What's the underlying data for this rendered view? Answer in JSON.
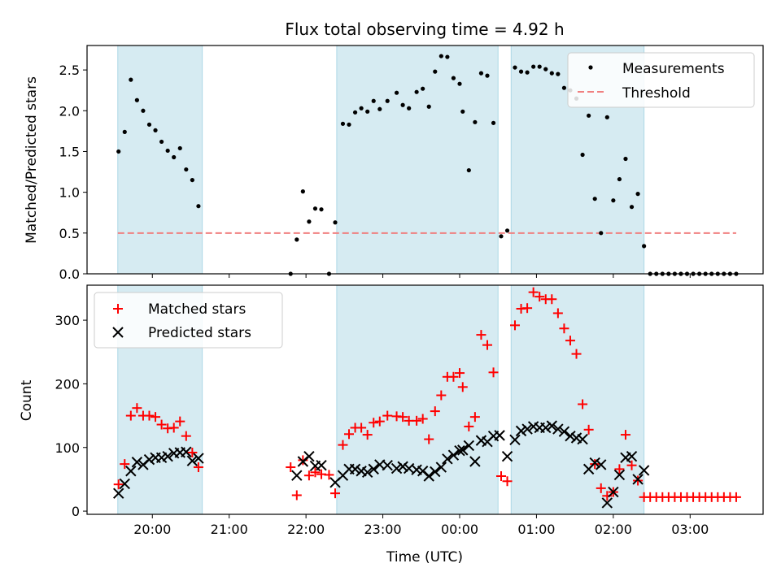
{
  "figure": {
    "title": "Flux total observing time = 4.92 h",
    "xlabel": "Time (UTC)",
    "x_ticks": [
      {
        "hour": 20,
        "label": "20:00"
      },
      {
        "hour": 21,
        "label": "21:00"
      },
      {
        "hour": 22,
        "label": "22:00"
      },
      {
        "hour": 23,
        "label": "23:00"
      },
      {
        "hour": 24,
        "label": "00:00"
      },
      {
        "hour": 25,
        "label": "01:00"
      },
      {
        "hour": 26,
        "label": "02:00"
      },
      {
        "hour": 27,
        "label": "03:00"
      }
    ],
    "shaded_intervals": [
      [
        19.55,
        20.65
      ],
      [
        22.4,
        24.5
      ],
      [
        24.67,
        26.4
      ]
    ],
    "colors": {
      "shade": "#add8e6",
      "matched": "#ff0000",
      "predicted": "#000000",
      "threshold": "#f08080",
      "measurements": "#000000"
    }
  },
  "chart_data": [
    {
      "type": "scatter",
      "ylabel": "Matched/Predicted stars",
      "ylim": [
        0,
        2.8
      ],
      "y_ticks": [
        "0.0",
        "0.5",
        "1.0",
        "1.5",
        "2.0",
        "2.5"
      ],
      "legend": {
        "placement": "top-right",
        "entries": [
          "Measurements",
          "Threshold"
        ]
      },
      "threshold": {
        "name": "Threshold",
        "y": 0.5,
        "x_range": [
          19.55,
          27.6
        ]
      },
      "series": [
        {
          "name": "Measurements",
          "points": [
            [
              19.56,
              1.5
            ],
            [
              19.64,
              1.74
            ],
            [
              19.72,
              2.38
            ],
            [
              19.8,
              2.13
            ],
            [
              19.88,
              2.0
            ],
            [
              19.96,
              1.83
            ],
            [
              20.04,
              1.76
            ],
            [
              20.12,
              1.62
            ],
            [
              20.2,
              1.51
            ],
            [
              20.28,
              1.43
            ],
            [
              20.36,
              1.54
            ],
            [
              20.44,
              1.28
            ],
            [
              20.52,
              1.15
            ],
            [
              20.6,
              0.83
            ],
            [
              21.8,
              0.0
            ],
            [
              21.88,
              0.42
            ],
            [
              21.96,
              1.01
            ],
            [
              22.04,
              0.64
            ],
            [
              22.12,
              0.8
            ],
            [
              22.2,
              0.79
            ],
            [
              22.3,
              0.0
            ],
            [
              22.38,
              0.63
            ],
            [
              22.48,
              1.84
            ],
            [
              22.56,
              1.83
            ],
            [
              22.64,
              1.98
            ],
            [
              22.72,
              2.03
            ],
            [
              22.8,
              1.99
            ],
            [
              22.88,
              2.12
            ],
            [
              22.96,
              2.02
            ],
            [
              23.06,
              2.12
            ],
            [
              23.18,
              2.22
            ],
            [
              23.26,
              2.07
            ],
            [
              23.34,
              2.03
            ],
            [
              23.44,
              2.23
            ],
            [
              23.52,
              2.27
            ],
            [
              23.6,
              2.05
            ],
            [
              23.68,
              2.48
            ],
            [
              23.76,
              2.67
            ],
            [
              23.84,
              2.66
            ],
            [
              23.92,
              2.4
            ],
            [
              24.0,
              2.33
            ],
            [
              24.04,
              1.99
            ],
            [
              24.12,
              1.27
            ],
            [
              24.2,
              1.86
            ],
            [
              24.28,
              2.46
            ],
            [
              24.36,
              2.43
            ],
            [
              24.44,
              1.85
            ],
            [
              24.54,
              0.46
            ],
            [
              24.62,
              0.53
            ],
            [
              24.72,
              2.53
            ],
            [
              24.8,
              2.48
            ],
            [
              24.88,
              2.47
            ],
            [
              24.96,
              2.54
            ],
            [
              25.04,
              2.54
            ],
            [
              25.12,
              2.51
            ],
            [
              25.2,
              2.46
            ],
            [
              25.28,
              2.45
            ],
            [
              25.36,
              2.28
            ],
            [
              25.44,
              2.25
            ],
            [
              25.52,
              2.15
            ],
            [
              25.6,
              1.46
            ],
            [
              25.68,
              1.94
            ],
            [
              25.76,
              0.92
            ],
            [
              25.84,
              0.5
            ],
            [
              25.92,
              1.92
            ],
            [
              26.0,
              0.9
            ],
            [
              26.08,
              1.16
            ],
            [
              26.16,
              1.41
            ],
            [
              26.24,
              0.82
            ],
            [
              26.32,
              0.98
            ],
            [
              26.4,
              0.34
            ],
            [
              26.48,
              0.0
            ],
            [
              26.56,
              0.0
            ],
            [
              26.64,
              0.0
            ],
            [
              26.72,
              0.0
            ],
            [
              26.8,
              0.0
            ],
            [
              26.88,
              0.0
            ],
            [
              26.96,
              0.0
            ],
            [
              27.04,
              0.0
            ],
            [
              27.12,
              0.0
            ],
            [
              27.2,
              0.0
            ],
            [
              27.28,
              0.0
            ],
            [
              27.36,
              0.0
            ],
            [
              27.44,
              0.0
            ],
            [
              27.52,
              0.0
            ],
            [
              27.6,
              0.0
            ]
          ]
        }
      ]
    },
    {
      "type": "scatter",
      "ylabel": "Count",
      "ylim": [
        -5,
        355
      ],
      "y_ticks": [
        "0",
        "100",
        "200",
        "300"
      ],
      "legend": {
        "placement": "top-left",
        "entries": [
          "Matched stars",
          "Predicted stars"
        ]
      },
      "series": [
        {
          "name": "Matched stars",
          "marker": "plus",
          "points": [
            [
              19.56,
              42
            ],
            [
              19.64,
              74
            ],
            [
              19.72,
              150
            ],
            [
              19.8,
              162
            ],
            [
              19.88,
              150
            ],
            [
              19.96,
              150
            ],
            [
              20.04,
              148
            ],
            [
              20.12,
              136
            ],
            [
              20.2,
              130
            ],
            [
              20.28,
              131
            ],
            [
              20.36,
              141
            ],
            [
              20.44,
              118
            ],
            [
              20.52,
              92
            ],
            [
              20.6,
              69
            ],
            [
              21.8,
              69
            ],
            [
              21.88,
              25
            ],
            [
              21.96,
              80
            ],
            [
              22.04,
              56
            ],
            [
              22.12,
              61
            ],
            [
              22.2,
              58
            ],
            [
              22.3,
              57
            ],
            [
              22.38,
              28
            ],
            [
              22.48,
              104
            ],
            [
              22.56,
              121
            ],
            [
              22.64,
              131
            ],
            [
              22.72,
              131
            ],
            [
              22.8,
              120
            ],
            [
              22.88,
              139
            ],
            [
              22.96,
              141
            ],
            [
              23.06,
              150
            ],
            [
              23.18,
              149
            ],
            [
              23.26,
              148
            ],
            [
              23.34,
              142
            ],
            [
              23.44,
              142
            ],
            [
              23.52,
              145
            ],
            [
              23.6,
              113
            ],
            [
              23.68,
              157
            ],
            [
              23.76,
              182
            ],
            [
              23.84,
              211
            ],
            [
              23.92,
              211
            ],
            [
              24.0,
              217
            ],
            [
              24.04,
              195
            ],
            [
              24.12,
              133
            ],
            [
              24.2,
              148
            ],
            [
              24.28,
              277
            ],
            [
              24.36,
              261
            ],
            [
              24.44,
              218
            ],
            [
              24.54,
              55
            ],
            [
              24.62,
              47
            ],
            [
              24.72,
              292
            ],
            [
              24.8,
              318
            ],
            [
              24.88,
              319
            ],
            [
              24.96,
              344
            ],
            [
              25.04,
              337
            ],
            [
              25.12,
              333
            ],
            [
              25.2,
              333
            ],
            [
              25.28,
              311
            ],
            [
              25.36,
              287
            ],
            [
              25.44,
              268
            ],
            [
              25.52,
              247
            ],
            [
              25.6,
              168
            ],
            [
              25.68,
              128
            ],
            [
              25.76,
              74
            ],
            [
              25.84,
              36
            ],
            [
              25.92,
              24
            ],
            [
              26.0,
              30
            ],
            [
              26.08,
              66
            ],
            [
              26.16,
              120
            ],
            [
              26.24,
              72
            ],
            [
              26.32,
              48
            ],
            [
              26.4,
              22
            ],
            [
              26.48,
              22
            ],
            [
              26.56,
              22
            ],
            [
              26.64,
              22
            ],
            [
              26.72,
              22
            ],
            [
              26.8,
              22
            ],
            [
              26.88,
              22
            ],
            [
              26.96,
              22
            ],
            [
              27.04,
              22
            ],
            [
              27.12,
              22
            ],
            [
              27.2,
              22
            ],
            [
              27.28,
              22
            ],
            [
              27.36,
              22
            ],
            [
              27.44,
              22
            ],
            [
              27.52,
              22
            ],
            [
              27.6,
              22
            ]
          ]
        },
        {
          "name": "Predicted stars",
          "marker": "x",
          "points": [
            [
              19.56,
              28
            ],
            [
              19.64,
              43
            ],
            [
              19.72,
              63
            ],
            [
              19.8,
              77
            ],
            [
              19.88,
              73
            ],
            [
              19.96,
              81
            ],
            [
              20.04,
              84
            ],
            [
              20.12,
              84
            ],
            [
              20.2,
              86
            ],
            [
              20.28,
              91
            ],
            [
              20.36,
              92
            ],
            [
              20.44,
              93
            ],
            [
              20.52,
              79
            ],
            [
              20.6,
              83
            ],
            [
              21.88,
              56
            ],
            [
              21.96,
              78
            ],
            [
              22.04,
              86
            ],
            [
              22.12,
              71
            ],
            [
              22.2,
              72
            ],
            [
              22.38,
              45
            ],
            [
              22.48,
              56
            ],
            [
              22.56,
              66
            ],
            [
              22.64,
              66
            ],
            [
              22.72,
              63
            ],
            [
              22.8,
              61
            ],
            [
              22.88,
              66
            ],
            [
              22.96,
              73
            ],
            [
              23.06,
              72
            ],
            [
              23.18,
              67
            ],
            [
              23.26,
              70
            ],
            [
              23.34,
              67
            ],
            [
              23.44,
              65
            ],
            [
              23.52,
              63
            ],
            [
              23.6,
              55
            ],
            [
              23.68,
              62
            ],
            [
              23.76,
              69
            ],
            [
              23.84,
              82
            ],
            [
              23.92,
              88
            ],
            [
              24.0,
              95
            ],
            [
              24.04,
              96
            ],
            [
              24.12,
              103
            ],
            [
              24.2,
              78
            ],
            [
              24.28,
              111
            ],
            [
              24.36,
              109
            ],
            [
              24.44,
              118
            ],
            [
              24.52,
              119
            ],
            [
              24.62,
              86
            ],
            [
              24.72,
              112
            ],
            [
              24.8,
              126
            ],
            [
              24.88,
              129
            ],
            [
              24.96,
              133
            ],
            [
              25.04,
              131
            ],
            [
              25.12,
              131
            ],
            [
              25.2,
              134
            ],
            [
              25.28,
              129
            ],
            [
              25.36,
              125
            ],
            [
              25.44,
              118
            ],
            [
              25.52,
              115
            ],
            [
              25.6,
              113
            ],
            [
              25.68,
              66
            ],
            [
              25.76,
              76
            ],
            [
              25.84,
              73
            ],
            [
              25.92,
              13
            ],
            [
              26.0,
              30
            ],
            [
              26.08,
              57
            ],
            [
              26.16,
              84
            ],
            [
              26.24,
              86
            ],
            [
              26.32,
              50
            ],
            [
              26.4,
              64
            ]
          ]
        }
      ]
    }
  ]
}
